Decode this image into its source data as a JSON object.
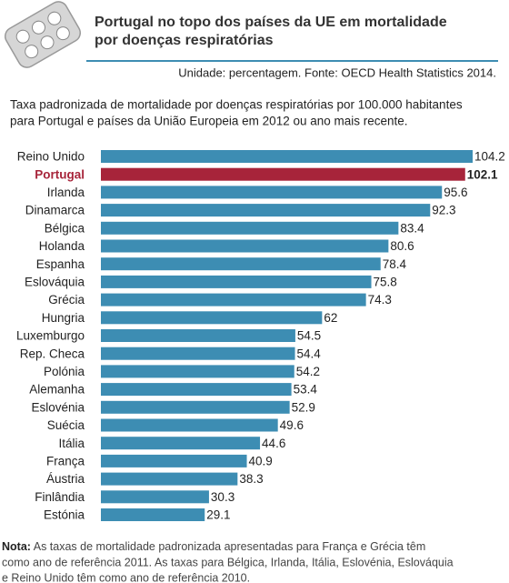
{
  "chart_data": {
    "type": "bar",
    "orientation": "horizontal",
    "title": [
      "Portugal no topo dos países da UE em mortalidade",
      "por doenças respiratórias"
    ],
    "source": "Unidade: percentagem. Fonte: OECD Health Statistics 2014.",
    "subtitle": [
      "Taxa padronizada de mortalidade por doenças respiratórias por 100.000 habitantes",
      "para Portugal e países da União Europeia em 2012 ou ano mais recente."
    ],
    "categories": [
      "Reino Unido",
      "Portugal",
      "Irlanda",
      "Dinamarca",
      "Bélgica",
      "Holanda",
      "Espanha",
      "Eslováquia",
      "Grécia",
      "Hungria",
      "Luxemburgo",
      "Rep. Checa",
      "Polónia",
      "Alemanha",
      "Eslovénia",
      "Suécia",
      "Itália",
      "França",
      "Áustria",
      "Finlândia",
      "Estónia"
    ],
    "values": [
      104.2,
      102.1,
      95.6,
      92.3,
      83.4,
      80.6,
      78.4,
      75.8,
      74.3,
      62,
      54.5,
      54.4,
      54.2,
      53.4,
      52.9,
      49.6,
      44.6,
      40.9,
      38.3,
      30.3,
      29.1
    ],
    "color": "#3d8db3",
    "highlight": {
      "index": 1,
      "color": "#a7243a"
    },
    "note": {
      "label": "Nota:",
      "lines": [
        "As taxas de mortalidade padronizada apresentadas para França e Grécia têm",
        "como ano de referência 2011. As taxas para Bélgica, Irlanda, Itália, Eslovénia, Eslováquia",
        "e Reino Unido têm como ano de referência 2010."
      ]
    }
  }
}
